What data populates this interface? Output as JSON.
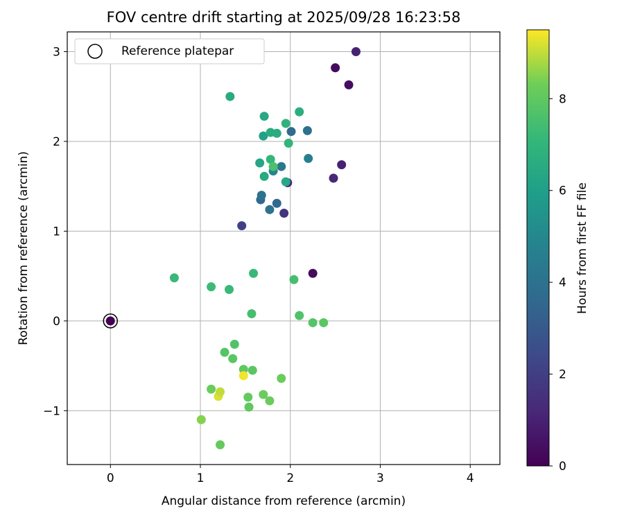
{
  "chart_data": {
    "type": "scatter",
    "title": "FOV centre drift starting at 2025/09/28 16:23:58",
    "xlabel": "Angular distance from reference (arcmin)",
    "ylabel": "Rotation from reference (arcmin)",
    "xlim": [
      -0.48,
      4.33
    ],
    "ylim": [
      -1.6,
      3.22
    ],
    "xticks": [
      0,
      1,
      2,
      3,
      4
    ],
    "yticks": [
      -1,
      0,
      1,
      2,
      3
    ],
    "xtick_labels": [
      "0",
      "1",
      "2",
      "3",
      "4"
    ],
    "ytick_labels": [
      "−1",
      "0",
      "1",
      "2",
      "3"
    ],
    "grid": true,
    "legend": {
      "position": "top-left",
      "label": "Reference platepar"
    },
    "reference_point": {
      "x": 0,
      "y": 0
    },
    "colorbar": {
      "label": "Hours from first FF file",
      "colormap": "viridis",
      "range": [
        0,
        9.5
      ],
      "ticks": [
        0,
        2,
        4,
        6,
        8
      ],
      "tick_labels": [
        "0",
        "2",
        "4",
        "6",
        "8"
      ]
    },
    "points": [
      {
        "x": 0.0,
        "y": 0.0,
        "hours": 0.0
      },
      {
        "x": 2.5,
        "y": 2.82,
        "hours": 0.3
      },
      {
        "x": 2.65,
        "y": 2.63,
        "hours": 0.4
      },
      {
        "x": 2.73,
        "y": 3.0,
        "hours": 1.0
      },
      {
        "x": 2.57,
        "y": 1.74,
        "hours": 1.0
      },
      {
        "x": 2.48,
        "y": 1.59,
        "hours": 1.2
      },
      {
        "x": 2.25,
        "y": 0.53,
        "hours": 0.3
      },
      {
        "x": 1.97,
        "y": 1.54,
        "hours": 1.3
      },
      {
        "x": 1.93,
        "y": 1.2,
        "hours": 1.6
      },
      {
        "x": 1.46,
        "y": 1.06,
        "hours": 2.1
      },
      {
        "x": 1.85,
        "y": 1.31,
        "hours": 3.6
      },
      {
        "x": 1.77,
        "y": 1.24,
        "hours": 4.0
      },
      {
        "x": 1.67,
        "y": 1.35,
        "hours": 3.6
      },
      {
        "x": 1.68,
        "y": 1.4,
        "hours": 4.0
      },
      {
        "x": 2.01,
        "y": 2.11,
        "hours": 3.7
      },
      {
        "x": 2.19,
        "y": 2.12,
        "hours": 3.9
      },
      {
        "x": 2.2,
        "y": 1.81,
        "hours": 4.6
      },
      {
        "x": 1.9,
        "y": 1.72,
        "hours": 4.3
      },
      {
        "x": 1.81,
        "y": 1.67,
        "hours": 4.9
      },
      {
        "x": 1.95,
        "y": 1.55,
        "hours": 6.4
      },
      {
        "x": 1.71,
        "y": 1.61,
        "hours": 6.5
      },
      {
        "x": 1.66,
        "y": 1.76,
        "hours": 6.3
      },
      {
        "x": 1.78,
        "y": 1.8,
        "hours": 7.1
      },
      {
        "x": 1.81,
        "y": 1.72,
        "hours": 7.6
      },
      {
        "x": 1.98,
        "y": 1.98,
        "hours": 7.0
      },
      {
        "x": 1.7,
        "y": 2.06,
        "hours": 6.1
      },
      {
        "x": 1.78,
        "y": 2.1,
        "hours": 6.6
      },
      {
        "x": 1.85,
        "y": 2.09,
        "hours": 6.6
      },
      {
        "x": 1.95,
        "y": 2.2,
        "hours": 6.9
      },
      {
        "x": 1.71,
        "y": 2.28,
        "hours": 6.4
      },
      {
        "x": 2.1,
        "y": 2.33,
        "hours": 6.7
      },
      {
        "x": 1.33,
        "y": 2.5,
        "hours": 6.5
      },
      {
        "x": 0.71,
        "y": 0.48,
        "hours": 7.2
      },
      {
        "x": 1.12,
        "y": 0.38,
        "hours": 7.3
      },
      {
        "x": 1.32,
        "y": 0.35,
        "hours": 7.2
      },
      {
        "x": 1.59,
        "y": 0.53,
        "hours": 7.2
      },
      {
        "x": 1.57,
        "y": 0.08,
        "hours": 7.5
      },
      {
        "x": 2.04,
        "y": 0.46,
        "hours": 7.5
      },
      {
        "x": 2.1,
        "y": 0.06,
        "hours": 7.7
      },
      {
        "x": 2.25,
        "y": -0.02,
        "hours": 7.8
      },
      {
        "x": 2.37,
        "y": -0.02,
        "hours": 7.9
      },
      {
        "x": 1.38,
        "y": -0.26,
        "hours": 7.7
      },
      {
        "x": 1.27,
        "y": -0.35,
        "hours": 7.8
      },
      {
        "x": 1.36,
        "y": -0.42,
        "hours": 7.9
      },
      {
        "x": 1.48,
        "y": -0.54,
        "hours": 8.0
      },
      {
        "x": 1.58,
        "y": -0.55,
        "hours": 7.9
      },
      {
        "x": 1.48,
        "y": -0.61,
        "hours": 9.4
      },
      {
        "x": 1.9,
        "y": -0.64,
        "hours": 8.2
      },
      {
        "x": 1.12,
        "y": -0.76,
        "hours": 8.2
      },
      {
        "x": 1.2,
        "y": -0.84,
        "hours": 9.2
      },
      {
        "x": 1.22,
        "y": -0.79,
        "hours": 9.0
      },
      {
        "x": 1.53,
        "y": -0.85,
        "hours": 8.1
      },
      {
        "x": 1.7,
        "y": -0.82,
        "hours": 8.2
      },
      {
        "x": 1.77,
        "y": -0.89,
        "hours": 8.2
      },
      {
        "x": 1.54,
        "y": -0.96,
        "hours": 8.0
      },
      {
        "x": 1.01,
        "y": -1.1,
        "hours": 8.5
      },
      {
        "x": 1.22,
        "y": -1.38,
        "hours": 8.1
      }
    ]
  }
}
